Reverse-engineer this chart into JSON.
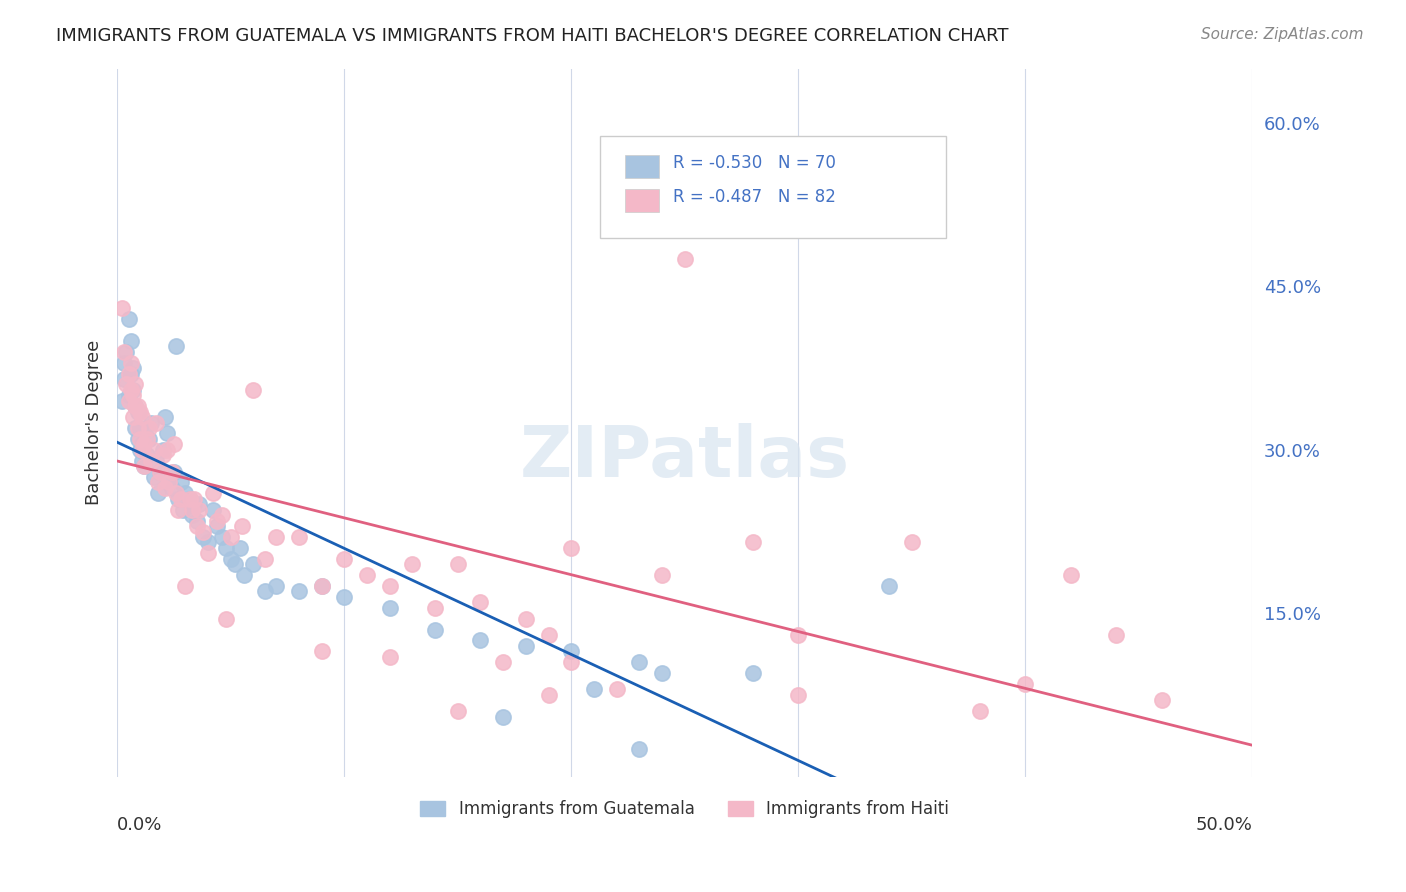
{
  "title": "IMMIGRANTS FROM GUATEMALA VS IMMIGRANTS FROM HAITI BACHELOR'S DEGREE CORRELATION CHART",
  "source": "Source: ZipAtlas.com",
  "ylabel": "Bachelor's Degree",
  "right_yticks": [
    "60.0%",
    "45.0%",
    "30.0%",
    "15.0%"
  ],
  "right_ytick_vals": [
    0.6,
    0.45,
    0.3,
    0.15
  ],
  "xlim": [
    0.0,
    0.5
  ],
  "ylim": [
    0.0,
    0.65
  ],
  "R_guatemala": -0.53,
  "N_guatemala": 70,
  "R_haiti": -0.487,
  "N_haiti": 82,
  "guatemala_color": "#a8c4e0",
  "haiti_color": "#f4b8c8",
  "regression_guatemala_color": "#1a5fb4",
  "regression_haiti_color": "#e06080",
  "watermark": "ZIPatlas",
  "legend_label_guatemala": "Immigrants from Guatemala",
  "legend_label_haiti": "Immigrants from Haiti",
  "guatemala_points": [
    [
      0.002,
      0.345
    ],
    [
      0.003,
      0.38
    ],
    [
      0.003,
      0.365
    ],
    [
      0.004,
      0.39
    ],
    [
      0.005,
      0.42
    ],
    [
      0.005,
      0.35
    ],
    [
      0.006,
      0.4
    ],
    [
      0.006,
      0.37
    ],
    [
      0.007,
      0.355
    ],
    [
      0.007,
      0.375
    ],
    [
      0.008,
      0.32
    ],
    [
      0.008,
      0.34
    ],
    [
      0.009,
      0.31
    ],
    [
      0.009,
      0.335
    ],
    [
      0.01,
      0.3
    ],
    [
      0.01,
      0.32
    ],
    [
      0.011,
      0.29
    ],
    [
      0.011,
      0.305
    ],
    [
      0.012,
      0.285
    ],
    [
      0.013,
      0.295
    ],
    [
      0.014,
      0.31
    ],
    [
      0.015,
      0.325
    ],
    [
      0.016,
      0.275
    ],
    [
      0.017,
      0.29
    ],
    [
      0.018,
      0.26
    ],
    [
      0.019,
      0.28
    ],
    [
      0.02,
      0.3
    ],
    [
      0.021,
      0.33
    ],
    [
      0.022,
      0.315
    ],
    [
      0.023,
      0.27
    ],
    [
      0.024,
      0.265
    ],
    [
      0.025,
      0.28
    ],
    [
      0.026,
      0.395
    ],
    [
      0.027,
      0.255
    ],
    [
      0.028,
      0.27
    ],
    [
      0.029,
      0.245
    ],
    [
      0.03,
      0.26
    ],
    [
      0.032,
      0.255
    ],
    [
      0.033,
      0.24
    ],
    [
      0.034,
      0.25
    ],
    [
      0.035,
      0.235
    ],
    [
      0.036,
      0.25
    ],
    [
      0.038,
      0.22
    ],
    [
      0.04,
      0.215
    ],
    [
      0.042,
      0.245
    ],
    [
      0.044,
      0.23
    ],
    [
      0.046,
      0.22
    ],
    [
      0.048,
      0.21
    ],
    [
      0.05,
      0.2
    ],
    [
      0.052,
      0.195
    ],
    [
      0.054,
      0.21
    ],
    [
      0.056,
      0.185
    ],
    [
      0.06,
      0.195
    ],
    [
      0.065,
      0.17
    ],
    [
      0.07,
      0.175
    ],
    [
      0.08,
      0.17
    ],
    [
      0.09,
      0.175
    ],
    [
      0.1,
      0.165
    ],
    [
      0.12,
      0.155
    ],
    [
      0.14,
      0.135
    ],
    [
      0.16,
      0.125
    ],
    [
      0.18,
      0.12
    ],
    [
      0.2,
      0.115
    ],
    [
      0.23,
      0.105
    ],
    [
      0.21,
      0.08
    ],
    [
      0.24,
      0.095
    ],
    [
      0.28,
      0.095
    ],
    [
      0.17,
      0.055
    ],
    [
      0.23,
      0.025
    ],
    [
      0.34,
      0.175
    ]
  ],
  "haiti_points": [
    [
      0.002,
      0.43
    ],
    [
      0.003,
      0.39
    ],
    [
      0.004,
      0.36
    ],
    [
      0.005,
      0.345
    ],
    [
      0.005,
      0.37
    ],
    [
      0.006,
      0.355
    ],
    [
      0.006,
      0.38
    ],
    [
      0.007,
      0.33
    ],
    [
      0.007,
      0.35
    ],
    [
      0.008,
      0.34
    ],
    [
      0.008,
      0.36
    ],
    [
      0.009,
      0.32
    ],
    [
      0.009,
      0.34
    ],
    [
      0.01,
      0.335
    ],
    [
      0.01,
      0.31
    ],
    [
      0.011,
      0.33
    ],
    [
      0.011,
      0.3
    ],
    [
      0.012,
      0.285
    ],
    [
      0.012,
      0.305
    ],
    [
      0.013,
      0.31
    ],
    [
      0.014,
      0.32
    ],
    [
      0.015,
      0.29
    ],
    [
      0.016,
      0.3
    ],
    [
      0.017,
      0.325
    ],
    [
      0.018,
      0.27
    ],
    [
      0.019,
      0.28
    ],
    [
      0.02,
      0.295
    ],
    [
      0.021,
      0.265
    ],
    [
      0.022,
      0.3
    ],
    [
      0.023,
      0.27
    ],
    [
      0.024,
      0.28
    ],
    [
      0.025,
      0.305
    ],
    [
      0.026,
      0.26
    ],
    [
      0.027,
      0.245
    ],
    [
      0.028,
      0.255
    ],
    [
      0.03,
      0.175
    ],
    [
      0.032,
      0.255
    ],
    [
      0.033,
      0.245
    ],
    [
      0.034,
      0.255
    ],
    [
      0.035,
      0.23
    ],
    [
      0.036,
      0.245
    ],
    [
      0.038,
      0.225
    ],
    [
      0.04,
      0.205
    ],
    [
      0.042,
      0.26
    ],
    [
      0.044,
      0.235
    ],
    [
      0.046,
      0.24
    ],
    [
      0.05,
      0.22
    ],
    [
      0.055,
      0.23
    ],
    [
      0.06,
      0.355
    ],
    [
      0.065,
      0.2
    ],
    [
      0.07,
      0.22
    ],
    [
      0.08,
      0.22
    ],
    [
      0.09,
      0.175
    ],
    [
      0.1,
      0.2
    ],
    [
      0.11,
      0.185
    ],
    [
      0.12,
      0.175
    ],
    [
      0.13,
      0.195
    ],
    [
      0.14,
      0.155
    ],
    [
      0.15,
      0.195
    ],
    [
      0.16,
      0.16
    ],
    [
      0.17,
      0.105
    ],
    [
      0.18,
      0.145
    ],
    [
      0.19,
      0.13
    ],
    [
      0.2,
      0.105
    ],
    [
      0.22,
      0.08
    ],
    [
      0.24,
      0.185
    ],
    [
      0.25,
      0.475
    ],
    [
      0.048,
      0.145
    ],
    [
      0.09,
      0.115
    ],
    [
      0.12,
      0.11
    ],
    [
      0.15,
      0.06
    ],
    [
      0.19,
      0.075
    ],
    [
      0.2,
      0.21
    ],
    [
      0.28,
      0.215
    ],
    [
      0.3,
      0.13
    ],
    [
      0.35,
      0.215
    ],
    [
      0.4,
      0.085
    ],
    [
      0.42,
      0.185
    ],
    [
      0.44,
      0.13
    ],
    [
      0.46,
      0.07
    ],
    [
      0.3,
      0.075
    ],
    [
      0.38,
      0.06
    ]
  ]
}
